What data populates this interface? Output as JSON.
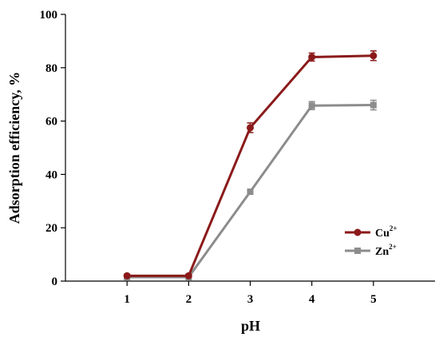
{
  "chart_data": {
    "type": "line",
    "title": "",
    "xlabel": "pH",
    "ylabel": "Adsorption efficiency, %",
    "x": [
      1,
      2,
      3,
      4,
      5
    ],
    "x_tick_labels": [
      "1",
      "2",
      "3",
      "4",
      "5"
    ],
    "xlim": [
      0,
      6
    ],
    "ylim": [
      0,
      100
    ],
    "y_ticks": [
      0,
      20,
      40,
      60,
      80,
      100
    ],
    "y_tick_labels": [
      "0",
      "20",
      "40",
      "60",
      "80",
      "100"
    ],
    "grid": false,
    "legend_position": "right",
    "series": [
      {
        "name": "Cu",
        "name_superscript": "2+",
        "color": "#8b1a1a",
        "marker": "circle",
        "values": [
          2,
          2,
          57.5,
          84,
          84.5
        ],
        "error": [
          0.5,
          0.5,
          1.8,
          1.5,
          1.8
        ]
      },
      {
        "name": "Zn",
        "name_superscript": "2+",
        "color": "#8c8c8c",
        "marker": "square",
        "values": [
          1.5,
          1.5,
          33.5,
          65.8,
          66
        ],
        "error": [
          0.5,
          0.5,
          0.8,
          1.5,
          1.8
        ]
      }
    ]
  }
}
